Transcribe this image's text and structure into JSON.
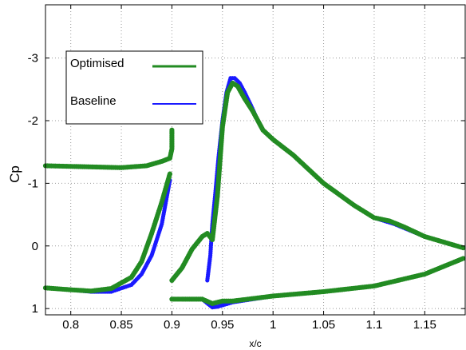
{
  "chart_data": {
    "type": "scatter",
    "xlabel": "x/c",
    "ylabel": "Cp",
    "xlim": [
      0.775,
      1.19
    ],
    "ylim": [
      -3.85,
      1.1
    ],
    "y_reversed": true,
    "grid": true,
    "grid_style": "dotted",
    "legend_position": "top-left",
    "x_ticks": [
      0.8,
      0.85,
      0.9,
      0.95,
      1,
      1.05,
      1.1,
      1.15
    ],
    "x_tick_labels": [
      "0.8",
      "0.85",
      "0.9",
      "0.95",
      "1",
      "1.05",
      "1.1",
      "1.15"
    ],
    "y_ticks": [
      -3,
      -2,
      -1,
      0,
      1
    ],
    "y_tick_labels": [
      "-3",
      "-2",
      "-1",
      "0",
      "1"
    ],
    "series": [
      {
        "name": "Baseline",
        "color": "#1a1aff",
        "marker": "dot",
        "segments": [
          [
            [
              0.775,
              0.67
            ],
            [
              0.8,
              0.7
            ],
            [
              0.82,
              0.73
            ],
            [
              0.84,
              0.73
            ],
            [
              0.86,
              0.62
            ],
            [
              0.87,
              0.45
            ],
            [
              0.88,
              0.15
            ],
            [
              0.89,
              -0.35
            ],
            [
              0.898,
              -1.05
            ]
          ],
          [
            [
              0.9,
              0.85
            ],
            [
              0.91,
              0.85
            ],
            [
              0.93,
              0.85
            ],
            [
              0.94,
              0.98
            ],
            [
              0.945,
              0.97
            ],
            [
              0.96,
              0.9
            ],
            [
              1.0,
              0.8
            ],
            [
              1.05,
              0.73
            ],
            [
              1.1,
              0.64
            ],
            [
              1.15,
              0.45
            ],
            [
              1.188,
              0.2
            ]
          ],
          [
            [
              0.935,
              0.55
            ],
            [
              0.938,
              0.15
            ],
            [
              0.94,
              -0.35
            ],
            [
              0.943,
              -0.85
            ],
            [
              0.946,
              -1.4
            ],
            [
              0.95,
              -2.0
            ],
            [
              0.954,
              -2.45
            ],
            [
              0.958,
              -2.68
            ],
            [
              0.962,
              -2.68
            ],
            [
              0.967,
              -2.6
            ],
            [
              0.972,
              -2.45
            ],
            [
              0.978,
              -2.25
            ],
            [
              0.985,
              -2.0
            ],
            [
              0.99,
              -1.85
            ],
            [
              1.0,
              -1.7
            ],
            [
              1.02,
              -1.45
            ],
            [
              1.05,
              -1.0
            ],
            [
              1.08,
              -0.65
            ],
            [
              1.1,
              -0.45
            ],
            [
              1.12,
              -0.35
            ],
            [
              1.15,
              -0.15
            ],
            [
              1.188,
              0.03
            ]
          ],
          [
            [
              0.775,
              -1.28
            ],
            [
              0.8,
              -1.27
            ],
            [
              0.85,
              -1.25
            ],
            [
              0.875,
              -1.28
            ],
            [
              0.89,
              -1.35
            ],
            [
              0.898,
              -1.4
            ],
            [
              0.9,
              -1.55
            ],
            [
              0.9,
              -1.85
            ]
          ]
        ]
      },
      {
        "name": "Optimised",
        "color": "#228b22",
        "marker": "dot",
        "segments": [
          [
            [
              0.775,
              0.67
            ],
            [
              0.8,
              0.7
            ],
            [
              0.82,
              0.72
            ],
            [
              0.84,
              0.68
            ],
            [
              0.86,
              0.5
            ],
            [
              0.87,
              0.25
            ],
            [
              0.88,
              -0.2
            ],
            [
              0.89,
              -0.7
            ],
            [
              0.898,
              -1.15
            ]
          ],
          [
            [
              0.9,
              0.85
            ],
            [
              0.91,
              0.85
            ],
            [
              0.93,
              0.85
            ],
            [
              0.94,
              0.92
            ],
            [
              0.95,
              0.88
            ],
            [
              0.96,
              0.88
            ],
            [
              1.0,
              0.8
            ],
            [
              1.05,
              0.73
            ],
            [
              1.1,
              0.64
            ],
            [
              1.15,
              0.45
            ],
            [
              1.188,
              0.2
            ]
          ],
          [
            [
              0.9,
              0.55
            ],
            [
              0.91,
              0.35
            ],
            [
              0.92,
              0.05
            ],
            [
              0.93,
              -0.15
            ],
            [
              0.935,
              -0.2
            ],
            [
              0.94,
              -0.1
            ],
            [
              0.945,
              -0.8
            ],
            [
              0.95,
              -1.9
            ],
            [
              0.955,
              -2.45
            ],
            [
              0.96,
              -2.6
            ],
            [
              0.965,
              -2.55
            ],
            [
              0.972,
              -2.35
            ],
            [
              0.98,
              -2.15
            ],
            [
              0.985,
              -2.0
            ],
            [
              0.99,
              -1.85
            ],
            [
              1.0,
              -1.7
            ],
            [
              1.02,
              -1.45
            ],
            [
              1.05,
              -1.0
            ],
            [
              1.08,
              -0.65
            ],
            [
              1.1,
              -0.45
            ],
            [
              1.115,
              -0.4
            ],
            [
              1.13,
              -0.3
            ],
            [
              1.15,
              -0.15
            ],
            [
              1.188,
              0.03
            ]
          ],
          [
            [
              0.775,
              -1.28
            ],
            [
              0.8,
              -1.27
            ],
            [
              0.85,
              -1.25
            ],
            [
              0.875,
              -1.28
            ],
            [
              0.89,
              -1.35
            ],
            [
              0.898,
              -1.4
            ],
            [
              0.9,
              -1.55
            ],
            [
              0.9,
              -1.85
            ]
          ]
        ]
      }
    ],
    "legend": [
      {
        "label": "Optimised",
        "color": "#228b22"
      },
      {
        "label": "Baseline",
        "color": "#1a1aff"
      }
    ]
  }
}
